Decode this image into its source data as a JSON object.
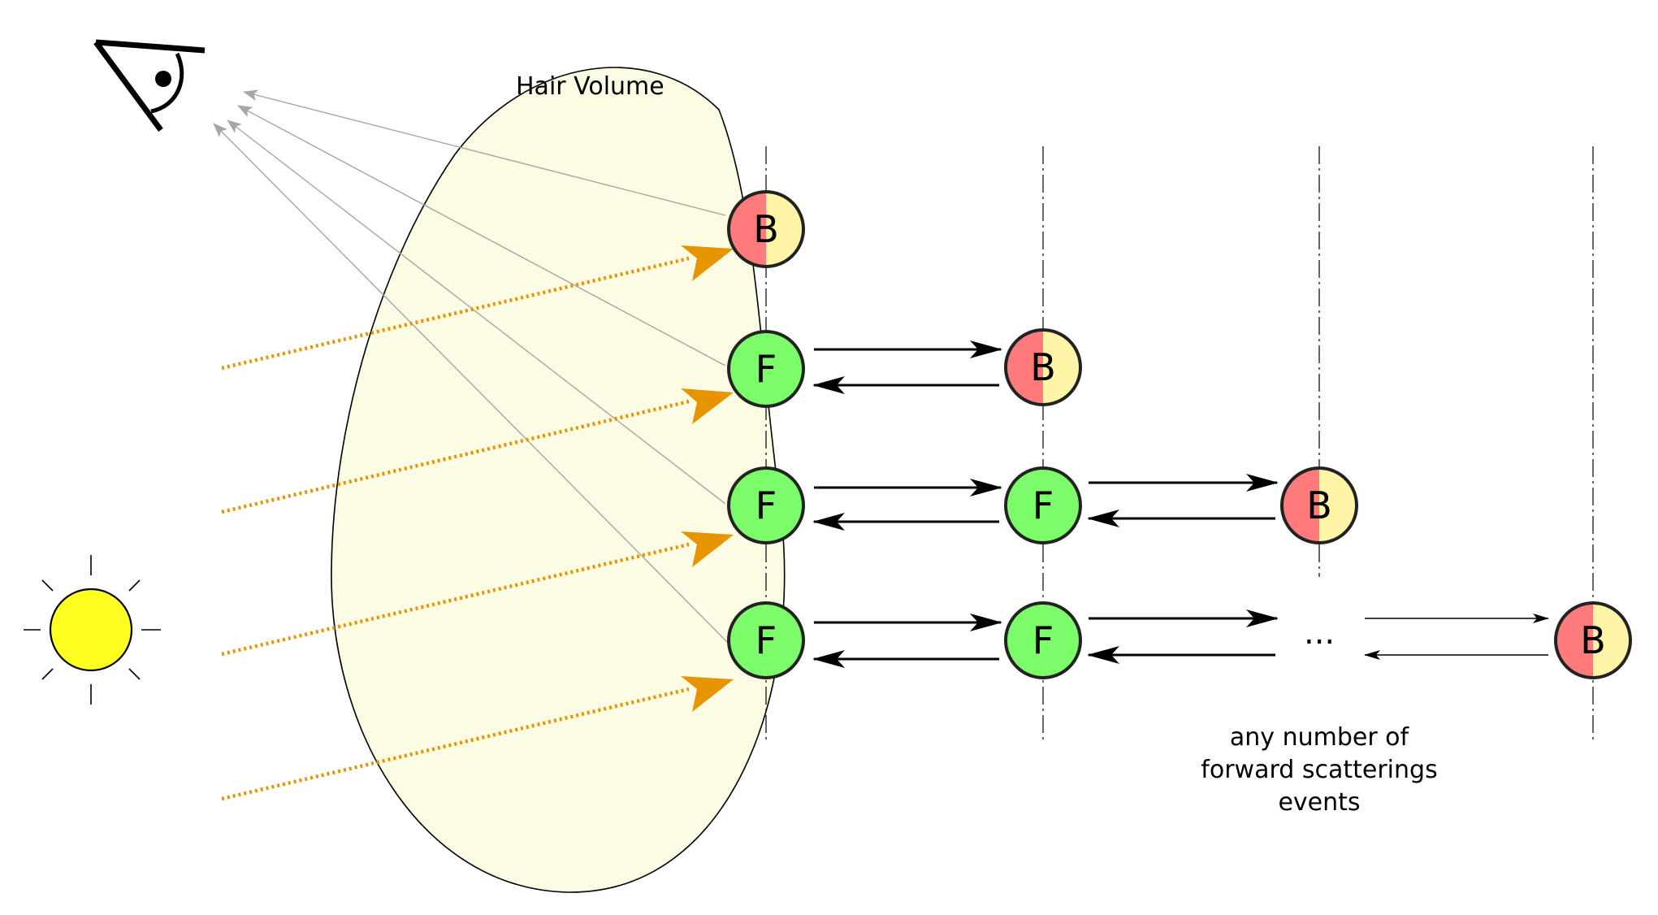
{
  "labels": {
    "hair_volume": "Hair Volume",
    "ellipsis": "...",
    "caption_line1": "any number of",
    "caption_line2": "forward scatterings",
    "caption_line3": "events"
  },
  "node_letters": {
    "backward": "B",
    "forward": "F"
  },
  "colors": {
    "hair_fill": "#fcfbe3",
    "forward_node": "#7cfc6a",
    "backward_left": "#ff7a7a",
    "backward_right": "#fff5a6",
    "light_ray": "#e69500",
    "sun": "#ffff22",
    "view_ray": "#a6a6a6"
  },
  "icons": [
    "eye-icon",
    "sun-icon"
  ]
}
